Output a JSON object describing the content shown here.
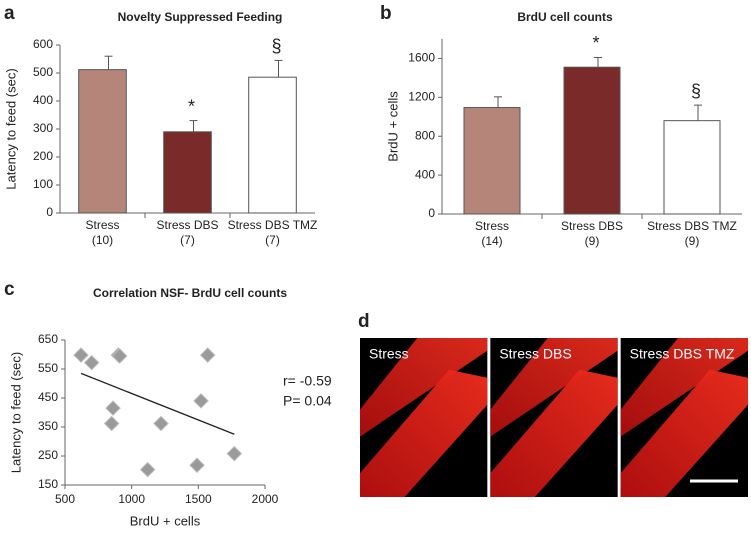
{
  "chart_data": [
    {
      "type": "bar",
      "panel": "a",
      "title": "Novelty Suppressed Feeding",
      "y_label": "Latency to feed (sec)",
      "categories": [
        "Stress",
        "Stress DBS",
        "Stress DBS TMZ"
      ],
      "group_sizes": [
        "(10)",
        "(7)",
        "(7)"
      ],
      "values": [
        512,
        290,
        485
      ],
      "errors": [
        48,
        40,
        60
      ],
      "colors": [
        "#b5857a",
        "#7b2a2a",
        "#ffffff"
      ],
      "annotations": [
        {
          "category": "Stress DBS",
          "text": "*"
        },
        {
          "category": "Stress DBS TMZ",
          "text": "§"
        }
      ],
      "ylim": [
        0,
        600
      ],
      "yticks": [
        0,
        100,
        200,
        300,
        400,
        500,
        600
      ]
    },
    {
      "type": "bar",
      "panel": "b",
      "title": "BrdU cell counts",
      "y_label": "BrdU + cells",
      "categories": [
        "Stress",
        "Stress DBS",
        "Stress DBS TMZ"
      ],
      "group_sizes": [
        "(14)",
        "(9)",
        "(9)"
      ],
      "values": [
        1095,
        1510,
        960
      ],
      "errors": [
        110,
        100,
        160
      ],
      "colors": [
        "#b5857a",
        "#7b2a2a",
        "#ffffff"
      ],
      "annotations": [
        {
          "category": "Stress DBS",
          "text": "*"
        },
        {
          "category": "Stress DBS TMZ",
          "text": "§"
        }
      ],
      "ylim": [
        0,
        1800
      ],
      "yticks": [
        0,
        400,
        800,
        1200,
        1600
      ]
    },
    {
      "type": "scatter",
      "panel": "c",
      "title": "Correlation NSF- BrdU cell counts",
      "x_label": "BrdU + cells",
      "y_label": "Latency to feed (sec)",
      "x": [
        620,
        700,
        900,
        910,
        860,
        850,
        1220,
        1120,
        1520,
        1570,
        1490,
        1770
      ],
      "y": [
        598,
        572,
        598,
        595,
        415,
        362,
        362,
        203,
        440,
        598,
        218,
        258
      ],
      "color": "#9a9a9a",
      "trendline": {
        "x": [
          620,
          1770
        ],
        "y": [
          535,
          325
        ]
      },
      "stats": [
        "r= -0.59",
        "P= 0.04"
      ],
      "xlim": [
        500,
        2000
      ],
      "xticks": [
        500,
        1000,
        1500,
        2000
      ],
      "ylim": [
        150,
        650
      ],
      "yticks": [
        150,
        250,
        350,
        450,
        550,
        650
      ]
    },
    {
      "type": "image",
      "panel": "d",
      "labels": [
        "Stress",
        "Stress DBS",
        "Stress DBS TMZ"
      ]
    }
  ]
}
